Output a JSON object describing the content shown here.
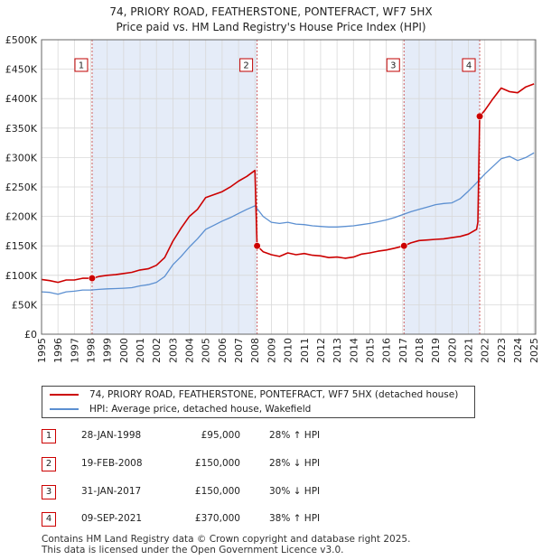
{
  "title_line1": "74, PRIORY ROAD, FEATHERSTONE, PONTEFRACT, WF7 5HX",
  "title_line2": "Price paid vs. HM Land Registry's House Price Index (HPI)",
  "chart_data": {
    "type": "line",
    "xlim": [
      1995,
      2025.1
    ],
    "ylim": [
      0,
      500000
    ],
    "yticks": [
      0,
      50000,
      100000,
      150000,
      200000,
      250000,
      300000,
      350000,
      400000,
      450000,
      500000
    ],
    "ytick_labels": [
      "£0",
      "£50K",
      "£100K",
      "£150K",
      "£200K",
      "£250K",
      "£300K",
      "£350K",
      "£400K",
      "£450K",
      "£500K"
    ],
    "xticks": [
      1995,
      1996,
      1997,
      1998,
      1999,
      2000,
      2001,
      2002,
      2003,
      2004,
      2005,
      2006,
      2007,
      2008,
      2009,
      2010,
      2011,
      2012,
      2013,
      2014,
      2015,
      2016,
      2017,
      2018,
      2019,
      2020,
      2021,
      2022,
      2023,
      2024,
      2025
    ],
    "xtick_labels": [
      "1995",
      "1996",
      "1997",
      "1998",
      "1999",
      "2000",
      "2001",
      "2002",
      "2003",
      "2004",
      "2005",
      "2006",
      "2007",
      "2008",
      "2009",
      "2010",
      "2011",
      "2012",
      "2013",
      "2014",
      "2015",
      "2016",
      "2017",
      "2018",
      "2019",
      "2020",
      "2021",
      "2022",
      "2023",
      "2024",
      "2025"
    ],
    "grid": true,
    "series": [
      {
        "name": "74, PRIORY ROAD, FEATHERSTONE, PONTEFRACT, WF7 5HX (detached house)",
        "color": "#cc0000",
        "x": [
          1995.0,
          1995.5,
          1996.0,
          1996.5,
          1997.0,
          1997.5,
          1998.08,
          1998.5,
          1999.0,
          1999.5,
          2000.0,
          2000.5,
          2001.0,
          2001.5,
          2002.0,
          2002.5,
          2003.0,
          2003.5,
          2004.0,
          2004.5,
          2005.0,
          2005.5,
          2006.0,
          2006.5,
          2007.0,
          2007.5,
          2008.0,
          2008.13,
          2008.5,
          2009.0,
          2009.5,
          2010.0,
          2010.5,
          2011.0,
          2011.5,
          2012.0,
          2012.5,
          2013.0,
          2013.5,
          2014.0,
          2014.5,
          2015.0,
          2015.5,
          2016.0,
          2016.5,
          2017.08,
          2017.5,
          2018.0,
          2018.5,
          2019.0,
          2019.5,
          2020.0,
          2020.5,
          2021.0,
          2021.5,
          2021.58,
          2021.69,
          2022.0,
          2022.5,
          2023.0,
          2023.5,
          2024.0,
          2024.5,
          2025.0
        ],
        "y": [
          93000,
          91000,
          88000,
          92000,
          92000,
          95000,
          95000,
          98000,
          100000,
          101000,
          103000,
          105000,
          109000,
          111000,
          117000,
          130000,
          158000,
          180000,
          200000,
          212000,
          232000,
          237000,
          242000,
          250000,
          260000,
          268000,
          278000,
          150000,
          140000,
          135000,
          132000,
          138000,
          135000,
          137000,
          134000,
          133000,
          130000,
          131000,
          129000,
          131000,
          136000,
          138000,
          141000,
          143000,
          146000,
          150000,
          155000,
          159000,
          160000,
          161000,
          162000,
          164000,
          166000,
          170000,
          178000,
          190000,
          370000,
          380000,
          400000,
          418000,
          412000,
          410000,
          420000,
          425000
        ]
      },
      {
        "name": "HPI: Average price, detached house, Wakefield",
        "color": "#5b8fd1",
        "x": [
          1995.0,
          1995.5,
          1996.0,
          1996.5,
          1997.0,
          1997.5,
          1998.0,
          1998.5,
          1999.0,
          1999.5,
          2000.0,
          2000.5,
          2001.0,
          2001.5,
          2002.0,
          2002.5,
          2003.0,
          2003.5,
          2004.0,
          2004.5,
          2005.0,
          2005.5,
          2006.0,
          2006.5,
          2007.0,
          2007.5,
          2008.0,
          2008.5,
          2009.0,
          2009.5,
          2010.0,
          2010.5,
          2011.0,
          2011.5,
          2012.0,
          2012.5,
          2013.0,
          2013.5,
          2014.0,
          2014.5,
          2015.0,
          2015.5,
          2016.0,
          2016.5,
          2017.0,
          2017.5,
          2018.0,
          2018.5,
          2019.0,
          2019.5,
          2020.0,
          2020.5,
          2021.0,
          2021.5,
          2022.0,
          2022.5,
          2023.0,
          2023.5,
          2024.0,
          2024.5,
          2025.0
        ],
        "y": [
          72000,
          71000,
          68000,
          72000,
          73000,
          75000,
          75000,
          76000,
          77000,
          77500,
          78000,
          79000,
          82000,
          84000,
          88000,
          98000,
          118000,
          132000,
          148000,
          162000,
          178000,
          185000,
          192000,
          198000,
          205000,
          212000,
          218000,
          200000,
          190000,
          188000,
          190000,
          187000,
          186000,
          184000,
          183000,
          182000,
          182000,
          183000,
          184000,
          186000,
          188000,
          191000,
          194000,
          198000,
          203000,
          208000,
          212000,
          216000,
          220000,
          222000,
          223000,
          230000,
          243000,
          257000,
          272000,
          285000,
          298000,
          302000,
          295000,
          300000,
          308000
        ]
      }
    ],
    "transactions": [
      {
        "num": "1",
        "x": 1998.08,
        "price": 95000
      },
      {
        "num": "2",
        "x": 2008.13,
        "price": 150000
      },
      {
        "num": "3",
        "x": 2017.08,
        "price": 150000
      },
      {
        "num": "4",
        "x": 2021.69,
        "price": 370000
      }
    ]
  },
  "legend": {
    "property_label": "74, PRIORY ROAD, FEATHERSTONE, PONTEFRACT, WF7 5HX (detached house)",
    "hpi_label": "HPI: Average price, detached house, Wakefield",
    "property_color": "#cc0000",
    "hpi_color": "#5b8fd1"
  },
  "table": [
    {
      "num": "1",
      "date": "28-JAN-1998",
      "price": "£95,000",
      "hpi": "28% ↑ HPI"
    },
    {
      "num": "2",
      "date": "19-FEB-2008",
      "price": "£150,000",
      "hpi": "28% ↓ HPI"
    },
    {
      "num": "3",
      "date": "31-JAN-2017",
      "price": "£150,000",
      "hpi": "30% ↓ HPI"
    },
    {
      "num": "4",
      "date": "09-SEP-2021",
      "price": "£370,000",
      "hpi": "38% ↑ HPI"
    }
  ],
  "footer": {
    "line1": "Contains HM Land Registry data © Crown copyright and database right 2025.",
    "line2": "This data is licensed under the Open Government Licence v3.0."
  }
}
